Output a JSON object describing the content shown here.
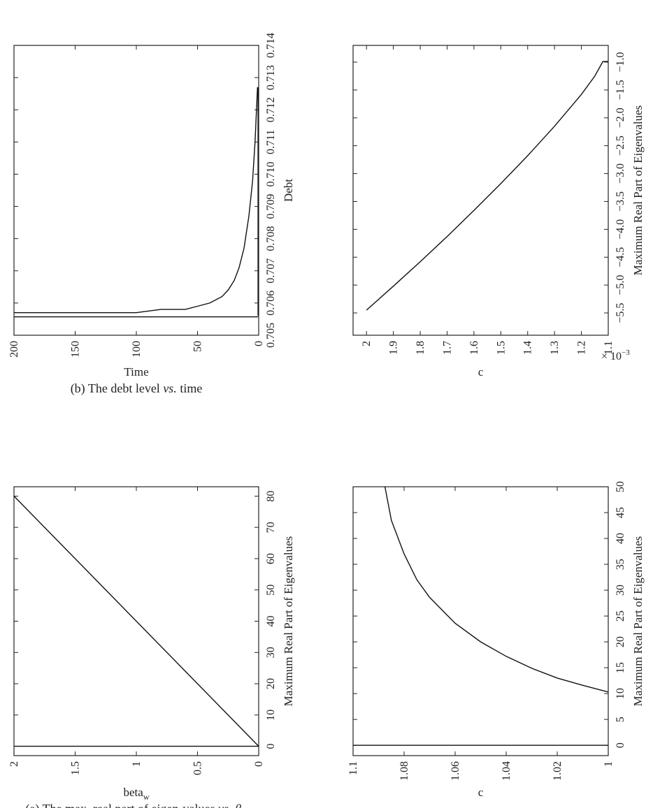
{
  "chart_data": [
    {
      "id": "a",
      "type": "line",
      "caption": "(a) The max. real part of eigen-values vs. β",
      "caption_plain": "(a) The max. real part of eigen-values ",
      "caption_vs": "vs.",
      "caption_beta": "β",
      "caption_beta_sub": "w",
      "xlabel": "beta",
      "xlabel_sub": "w",
      "ylabel": "Maximum Real Part of Eigenvalues",
      "xlim": [
        0,
        2
      ],
      "ylim": [
        -3,
        83
      ],
      "xticks": [
        0,
        0.5,
        1,
        1.5,
        2
      ],
      "xtick_labels": [
        "0",
        "0.5",
        "1",
        "1.5",
        "2"
      ],
      "yticks": [
        0,
        10,
        20,
        30,
        40,
        50,
        60,
        70,
        80
      ],
      "ytick_labels": [
        "0",
        "10",
        "20",
        "30",
        "40",
        "50",
        "60",
        "70",
        "80"
      ],
      "series": [
        {
          "x": [
            0,
            2
          ],
          "y": [
            0,
            80
          ]
        },
        {
          "x": [
            0,
            2
          ],
          "y": [
            0,
            0
          ]
        }
      ]
    },
    {
      "id": "b",
      "type": "line",
      "caption_plain": "(b) The debt level ",
      "caption_vs": "vs.",
      "caption_tail": " time",
      "xlabel": "Time",
      "ylabel": "Debt",
      "xlim": [
        0,
        200
      ],
      "ylim": [
        0.705,
        0.714
      ],
      "xticks": [
        0,
        50,
        100,
        150,
        200
      ],
      "xtick_labels": [
        "0",
        "50",
        "100",
        "150",
        "200"
      ],
      "yticks": [
        0.705,
        0.706,
        0.707,
        0.708,
        0.709,
        0.71,
        0.711,
        0.712,
        0.713,
        0.714
      ],
      "ytick_labels": [
        "0.705",
        "0.706",
        "0.707",
        "0.708",
        "0.709",
        "0.710",
        "0.711",
        "0.712",
        "0.713",
        "0.714"
      ],
      "series": [
        {
          "x": [
            0.5,
            0.5
          ],
          "y": [
            0.7127,
            0.7056
          ]
        },
        {
          "x": [
            1,
            3,
            5,
            8,
            12,
            16,
            20,
            25,
            30,
            35,
            40,
            50,
            60,
            80,
            100,
            150,
            200
          ],
          "y": [
            0.7127,
            0.711,
            0.7098,
            0.7087,
            0.7077,
            0.7071,
            0.7067,
            0.7064,
            0.7062,
            0.7061,
            0.706,
            0.7059,
            0.7058,
            0.7058,
            0.7057,
            0.7057,
            0.7057
          ]
        },
        {
          "x": [
            0.5,
            200
          ],
          "y": [
            0.70557,
            0.70557
          ]
        }
      ]
    },
    {
      "id": "c",
      "type": "line",
      "xlabel": "c",
      "ylabel": "Maximum Real Part of Eigenvalues",
      "xlim": [
        1,
        1.1
      ],
      "ylim": [
        -2,
        50
      ],
      "xticks": [
        1,
        1.02,
        1.04,
        1.06,
        1.08,
        1.1
      ],
      "xtick_labels": [
        "1",
        "1.02",
        "1.04",
        "1.06",
        "1.08",
        "1.1"
      ],
      "yticks": [
        0,
        5,
        10,
        15,
        20,
        25,
        30,
        35,
        40,
        45,
        50
      ],
      "ytick_labels": [
        "0",
        "5",
        "10",
        "15",
        "20",
        "25",
        "30",
        "35",
        "40",
        "45",
        "50"
      ],
      "series": [
        {
          "x": [
            1.0,
            1.01,
            1.02,
            1.03,
            1.04,
            1.05,
            1.06,
            1.07,
            1.075,
            1.08,
            1.085,
            1.0875
          ],
          "y": [
            10.3,
            11.6,
            13.0,
            14.9,
            17.2,
            20.0,
            23.6,
            28.6,
            32.0,
            37.0,
            43.5,
            50.0
          ]
        },
        {
          "x": [
            1.0,
            1.1
          ],
          "y": [
            0,
            0
          ]
        }
      ]
    },
    {
      "id": "d",
      "type": "line",
      "xlabel": "c",
      "ylabel": "Maximum Real Part of Eigenvalues",
      "exponent_label": "× 10",
      "exponent_power": "−3",
      "xlim": [
        1.1,
        2.05
      ],
      "ylim": [
        -5.9,
        -0.7
      ],
      "xticks": [
        1.1,
        1.2,
        1.3,
        1.4,
        1.5,
        1.6,
        1.7,
        1.8,
        1.9,
        2
      ],
      "xtick_labels": [
        "1.1",
        "1.2",
        "1.3",
        "1.4",
        "1.5",
        "1.6",
        "1.7",
        "1.8",
        "1.9",
        "2"
      ],
      "yticks": [
        -1.0,
        -1.5,
        -2.0,
        -2.5,
        -3.0,
        -3.5,
        -4.0,
        -4.5,
        -5.0,
        -5.5
      ],
      "ytick_labels": [
        "−1.0",
        "−1.5",
        "−2.0",
        "−2.5",
        "−3.0",
        "−3.5",
        "−4.0",
        "−4.5",
        "−5.0",
        "−5.5"
      ],
      "series": [
        {
          "x": [
            1.1,
            1.12,
            1.15,
            1.2,
            1.3,
            1.4,
            1.5,
            1.6,
            1.7,
            1.8,
            1.9,
            2.0
          ],
          "y": [
            -0.99,
            -0.99,
            -1.25,
            -1.58,
            -2.15,
            -2.68,
            -3.18,
            -3.66,
            -4.13,
            -4.58,
            -5.02,
            -5.45
          ]
        }
      ]
    }
  ]
}
